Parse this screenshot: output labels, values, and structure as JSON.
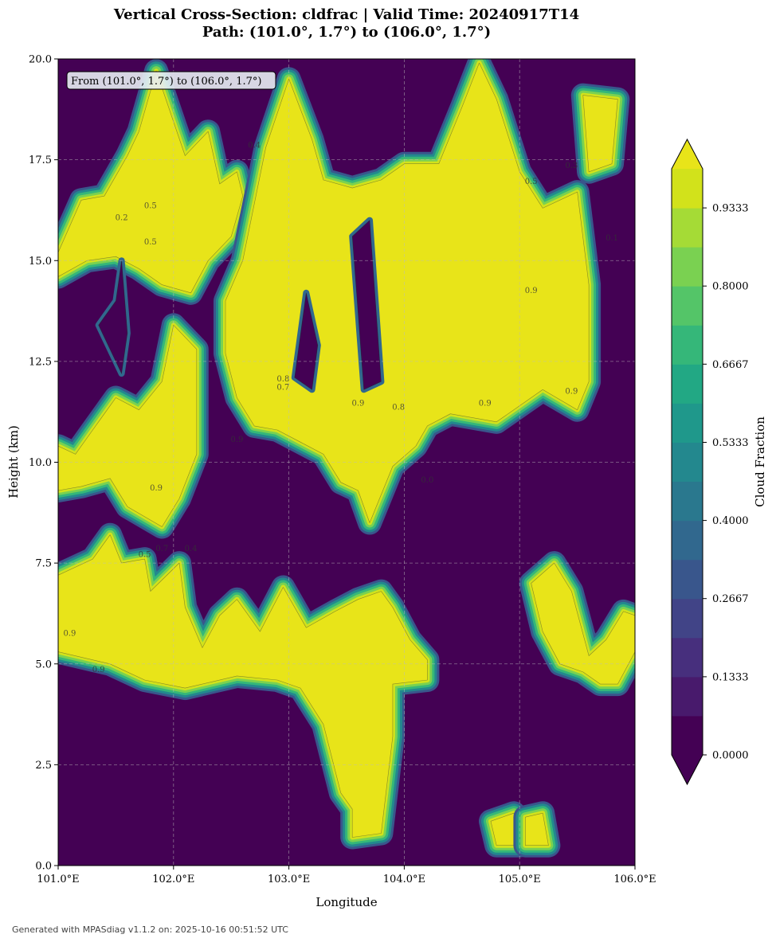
{
  "chart_data": {
    "type": "heatmap",
    "subtype": "filled-contour cross-section",
    "title_line1": "Vertical Cross-Section: cldfrac | Valid Time: 20240917T14",
    "title_line2": "Path: (101.0°, 1.7°) to (106.0°, 1.7°)",
    "xlabel": "Longitude",
    "ylabel": "Height (km)",
    "xlim": [
      101.0,
      106.0
    ],
    "ylim": [
      0.0,
      20.0
    ],
    "x_ticks": [
      101.0,
      102.0,
      103.0,
      104.0,
      105.0,
      106.0
    ],
    "x_tick_labels": [
      "101.0°E",
      "102.0°E",
      "103.0°E",
      "104.0°E",
      "105.0°E",
      "106.0°E"
    ],
    "y_ticks": [
      0.0,
      2.5,
      5.0,
      7.5,
      10.0,
      12.5,
      15.0,
      17.5,
      20.0
    ],
    "y_tick_labels": [
      "0.0",
      "2.5",
      "5.0",
      "7.5",
      "10.0",
      "12.5",
      "15.0",
      "17.5",
      "20.0"
    ],
    "grid": true,
    "annotation": "From (101.0°, 1.7°) to (106.0°, 1.7°)",
    "colorbar": {
      "label": "Cloud Fraction",
      "levels": [
        0.0,
        0.0667,
        0.1333,
        0.2,
        0.2667,
        0.3333,
        0.4,
        0.4667,
        0.5333,
        0.6,
        0.6667,
        0.7333,
        0.8,
        0.8667,
        0.9333,
        1.0
      ],
      "tick_values": [
        0.0,
        0.1333,
        0.2667,
        0.4,
        0.5333,
        0.6667,
        0.8,
        0.9333
      ],
      "tick_labels": [
        "0.0000",
        "0.1333",
        "0.2667",
        "0.4000",
        "0.5333",
        "0.6667",
        "0.8000",
        "0.9333"
      ],
      "colors": [
        "#440154",
        "#481a6c",
        "#472f7d",
        "#414487",
        "#39568c",
        "#31688e",
        "#2a788e",
        "#23888e",
        "#1f988b",
        "#22a884",
        "#35b779",
        "#54c568",
        "#7ad151",
        "#a5db36",
        "#d2e21b",
        "#e8e419"
      ],
      "extend": "both"
    },
    "cloud_regions": [
      {
        "name": "upper-left cloud",
        "value": 1.0,
        "points": [
          [
            101.0,
            15.2
          ],
          [
            101.2,
            16.5
          ],
          [
            101.4,
            16.6
          ],
          [
            101.6,
            17.6
          ],
          [
            101.7,
            18.2
          ],
          [
            101.85,
            19.7
          ],
          [
            102.1,
            17.6
          ],
          [
            102.3,
            18.2
          ],
          [
            102.4,
            16.9
          ],
          [
            102.55,
            17.2
          ],
          [
            102.6,
            16.6
          ],
          [
            102.5,
            15.6
          ],
          [
            102.3,
            15.0
          ],
          [
            102.15,
            14.2
          ],
          [
            101.9,
            14.4
          ],
          [
            101.7,
            14.8
          ],
          [
            101.5,
            15.1
          ],
          [
            101.25,
            15.0
          ],
          [
            101.0,
            14.6
          ]
        ]
      },
      {
        "name": "mid-left cloud",
        "value": 1.0,
        "points": [
          [
            101.0,
            10.4
          ],
          [
            101.15,
            10.2
          ],
          [
            101.3,
            10.8
          ],
          [
            101.5,
            11.6
          ],
          [
            101.7,
            11.3
          ],
          [
            101.9,
            12.0
          ],
          [
            102.0,
            13.4
          ],
          [
            102.2,
            12.8
          ],
          [
            102.2,
            10.2
          ],
          [
            102.05,
            9.1
          ],
          [
            101.9,
            8.4
          ],
          [
            101.6,
            8.9
          ],
          [
            101.45,
            9.6
          ],
          [
            101.2,
            9.4
          ],
          [
            101.0,
            9.3
          ]
        ]
      },
      {
        "name": "lower-left cloud",
        "value": 1.0,
        "points": [
          [
            101.0,
            7.2
          ],
          [
            101.3,
            7.6
          ],
          [
            101.45,
            8.2
          ],
          [
            101.55,
            7.5
          ],
          [
            101.75,
            7.6
          ],
          [
            101.8,
            6.8
          ],
          [
            102.05,
            7.5
          ],
          [
            102.1,
            6.4
          ],
          [
            102.25,
            5.4
          ],
          [
            102.4,
            6.2
          ],
          [
            102.55,
            6.6
          ],
          [
            102.75,
            5.8
          ],
          [
            102.95,
            6.9
          ],
          [
            103.15,
            5.9
          ],
          [
            103.4,
            6.3
          ],
          [
            103.6,
            6.6
          ],
          [
            103.8,
            6.8
          ],
          [
            103.9,
            6.4
          ],
          [
            104.05,
            5.6
          ],
          [
            104.2,
            5.1
          ],
          [
            104.2,
            4.6
          ],
          [
            103.9,
            4.5
          ],
          [
            103.9,
            3.2
          ],
          [
            103.8,
            0.8
          ],
          [
            103.55,
            0.7
          ],
          [
            103.55,
            1.4
          ],
          [
            103.45,
            1.8
          ],
          [
            103.3,
            3.5
          ],
          [
            103.1,
            4.4
          ],
          [
            102.9,
            4.6
          ],
          [
            102.55,
            4.7
          ],
          [
            102.1,
            4.4
          ],
          [
            101.75,
            4.6
          ],
          [
            101.45,
            5.0
          ],
          [
            101.0,
            5.3
          ]
        ]
      },
      {
        "name": "central cloud column",
        "value": 1.0,
        "points": [
          [
            102.6,
            15.0
          ],
          [
            102.8,
            17.8
          ],
          [
            103.0,
            19.5
          ],
          [
            103.2,
            18.0
          ],
          [
            103.3,
            17.0
          ],
          [
            103.55,
            16.8
          ],
          [
            103.8,
            17.0
          ],
          [
            104.0,
            17.4
          ],
          [
            104.3,
            17.4
          ],
          [
            104.5,
            18.8
          ],
          [
            104.65,
            19.9
          ],
          [
            104.8,
            19.0
          ],
          [
            105.0,
            17.2
          ],
          [
            105.2,
            16.3
          ],
          [
            105.5,
            16.7
          ],
          [
            105.6,
            14.4
          ],
          [
            105.6,
            12.0
          ],
          [
            105.5,
            11.3
          ],
          [
            105.2,
            11.8
          ],
          [
            104.8,
            11.0
          ],
          [
            104.4,
            11.2
          ],
          [
            104.2,
            10.9
          ],
          [
            104.1,
            10.4
          ],
          [
            103.9,
            9.9
          ],
          [
            103.7,
            8.5
          ],
          [
            103.6,
            9.3
          ],
          [
            103.45,
            9.5
          ],
          [
            103.3,
            10.2
          ],
          [
            103.1,
            10.5
          ],
          [
            102.9,
            10.8
          ],
          [
            102.7,
            10.9
          ],
          [
            102.55,
            11.6
          ],
          [
            102.45,
            12.7
          ],
          [
            102.45,
            14.0
          ]
        ]
      },
      {
        "name": "right lower cloud",
        "value": 1.0,
        "points": [
          [
            105.1,
            7.0
          ],
          [
            105.3,
            7.5
          ],
          [
            105.45,
            6.8
          ],
          [
            105.6,
            5.2
          ],
          [
            105.75,
            5.6
          ],
          [
            105.9,
            6.3
          ],
          [
            106.0,
            6.2
          ],
          [
            106.0,
            5.3
          ],
          [
            105.85,
            4.5
          ],
          [
            105.7,
            4.5
          ],
          [
            105.55,
            4.8
          ],
          [
            105.35,
            5.0
          ],
          [
            105.2,
            5.8
          ]
        ]
      },
      {
        "name": "top-right cloud",
        "value": 1.0,
        "points": [
          [
            105.55,
            19.1
          ],
          [
            105.6,
            17.2
          ],
          [
            105.8,
            17.4
          ],
          [
            105.85,
            19.0
          ]
        ]
      },
      {
        "name": "low cloud 104.7",
        "value": 1.0,
        "points": [
          [
            104.75,
            1.1
          ],
          [
            104.95,
            1.3
          ],
          [
            105.0,
            0.5
          ],
          [
            104.8,
            0.5
          ]
        ]
      },
      {
        "name": "low cloud 105.1",
        "value": 1.0,
        "points": [
          [
            105.05,
            1.2
          ],
          [
            105.2,
            1.3
          ],
          [
            105.25,
            0.5
          ],
          [
            105.05,
            0.5
          ]
        ]
      }
    ],
    "clear_regions": [
      {
        "name": "upper clear 101.6",
        "value": 0.0,
        "points": [
          [
            101.35,
            13.4
          ],
          [
            101.5,
            14.0
          ],
          [
            101.55,
            15.0
          ],
          [
            101.6,
            13.2
          ],
          [
            101.55,
            12.2
          ]
        ]
      },
      {
        "name": "upper clear 103.2",
        "value": 0.0,
        "points": [
          [
            103.05,
            12.1
          ],
          [
            103.15,
            14.2
          ],
          [
            103.25,
            12.9
          ],
          [
            103.2,
            11.8
          ]
        ]
      },
      {
        "name": "upper clear 103.6",
        "value": 0.0,
        "points": [
          [
            103.55,
            15.6
          ],
          [
            103.7,
            16.0
          ],
          [
            103.8,
            12.0
          ],
          [
            103.65,
            11.8
          ]
        ]
      }
    ],
    "contour_labels": [
      {
        "x": 101.1,
        "y": 5.7,
        "text": "0.9"
      },
      {
        "x": 101.35,
        "y": 4.8,
        "text": "0.9"
      },
      {
        "x": 101.75,
        "y": 7.65,
        "text": "0.5"
      },
      {
        "x": 101.9,
        "y": 7.8,
        "text": "0.7"
      },
      {
        "x": 102.15,
        "y": 7.8,
        "text": "0.4"
      },
      {
        "x": 101.85,
        "y": 9.3,
        "text": "0.9"
      },
      {
        "x": 102.55,
        "y": 10.5,
        "text": "0.9"
      },
      {
        "x": 103.95,
        "y": 11.3,
        "text": "0.8"
      },
      {
        "x": 105.1,
        "y": 14.2,
        "text": "0.9"
      },
      {
        "x": 103.6,
        "y": 11.4,
        "text": "0.9"
      },
      {
        "x": 104.7,
        "y": 11.4,
        "text": "0.9"
      },
      {
        "x": 105.45,
        "y": 11.7,
        "text": "0.9"
      },
      {
        "x": 105.1,
        "y": 16.9,
        "text": "0.5"
      },
      {
        "x": 105.45,
        "y": 17.3,
        "text": "0.3"
      },
      {
        "x": 101.8,
        "y": 15.4,
        "text": "0.5"
      },
      {
        "x": 101.8,
        "y": 16.3,
        "text": "0.5"
      },
      {
        "x": 101.55,
        "y": 16.0,
        "text": "0.2"
      },
      {
        "x": 102.95,
        "y": 12.0,
        "text": "0.8"
      },
      {
        "x": 102.95,
        "y": 11.8,
        "text": "0.7"
      },
      {
        "x": 102.7,
        "y": 17.8,
        "text": "0.4"
      },
      {
        "x": 105.8,
        "y": 15.5,
        "text": "0.1"
      },
      {
        "x": 104.2,
        "y": 9.5,
        "text": "0.0"
      }
    ]
  },
  "footer": "Generated with MPASdiag v1.1.2 on: 2025-10-16 00:51:52 UTC"
}
